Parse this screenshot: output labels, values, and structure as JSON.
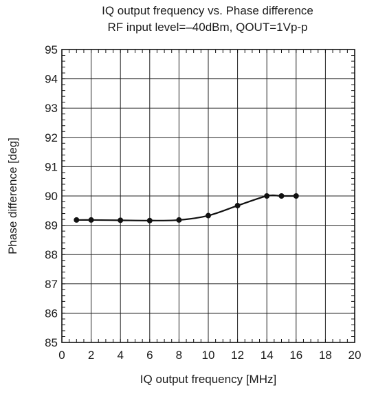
{
  "chart_data": {
    "type": "line",
    "title": "IQ output frequency vs. Phase difference",
    "subtitle": "RF input level=–40dBm, QOUT=1Vp-p",
    "xlabel": "IQ output frequency [MHz]",
    "ylabel": "Phase difference [deg]",
    "xlim": [
      0,
      20
    ],
    "ylim": [
      85,
      95
    ],
    "xticks": [
      0,
      2,
      4,
      6,
      8,
      10,
      12,
      14,
      16,
      18,
      20
    ],
    "yticks": [
      85,
      86,
      87,
      88,
      89,
      90,
      91,
      92,
      93,
      94,
      95
    ],
    "grid": true,
    "legend": "none",
    "series": [
      {
        "x": [
          1,
          2,
          4,
          6,
          8,
          10,
          12,
          14,
          15,
          16
        ],
        "y": [
          89.18,
          89.18,
          89.17,
          89.16,
          89.18,
          89.33,
          89.67,
          90.0,
          90.0,
          90.0
        ]
      }
    ],
    "line_color": "#111111"
  }
}
